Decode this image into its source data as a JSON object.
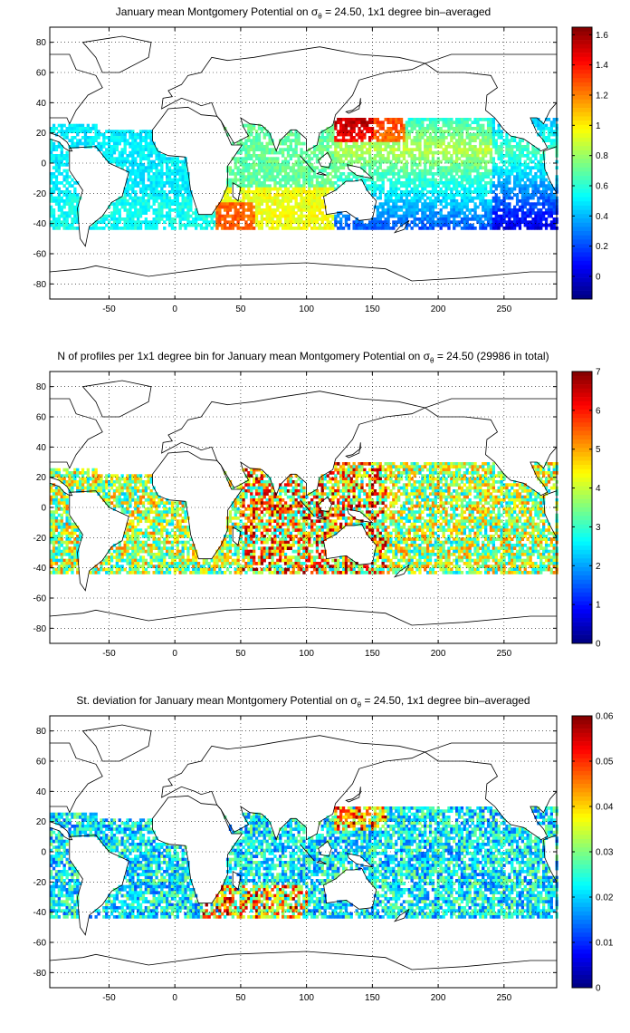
{
  "chart_data": [
    {
      "type": "heatmap",
      "title_pre": "January mean Montgomery Potential on ",
      "title_sigma": "σ",
      "title_sub": "θ",
      "title_post": " = 24.50, 1x1 degree bin–averaged",
      "xticks": [
        "-50",
        "0",
        "50",
        "100",
        "150",
        "200",
        "250"
      ],
      "xtick_values": [
        -50,
        0,
        50,
        100,
        150,
        200,
        250
      ],
      "yticks": [
        "80",
        "60",
        "40",
        "20",
        "0",
        "-20",
        "-40",
        "-60",
        "-80"
      ],
      "ytick_values": [
        80,
        60,
        40,
        20,
        0,
        -20,
        -40,
        -60,
        -80
      ],
      "xlim": [
        -95,
        290
      ],
      "ylim": [
        -90,
        90
      ],
      "grid": true,
      "colorbar": {
        "ticks": [
          "1.6",
          "1.4",
          "1.2",
          "1",
          "0.8",
          "0.6",
          "0.4",
          "0.2",
          "0"
        ],
        "tick_values": [
          1.6,
          1.4,
          1.2,
          1.0,
          0.8,
          0.6,
          0.4,
          0.2,
          0.0
        ],
        "range": [
          -0.15,
          1.65
        ]
      },
      "colormap": "jet"
    },
    {
      "type": "heatmap",
      "title_pre": "N of profiles per 1x1 degree bin for January mean Montgomery Potential on ",
      "title_sigma": "σ",
      "title_sub": "θ",
      "title_post": " = 24.50 (29986 in total)",
      "xticks": [
        "-50",
        "0",
        "50",
        "100",
        "150",
        "200",
        "250"
      ],
      "xtick_values": [
        -50,
        0,
        50,
        100,
        150,
        200,
        250
      ],
      "yticks": [
        "80",
        "60",
        "40",
        "20",
        "0",
        "-20",
        "-40",
        "-60",
        "-80"
      ],
      "ytick_values": [
        80,
        60,
        40,
        20,
        0,
        -20,
        -40,
        -60,
        -80
      ],
      "xlim": [
        -95,
        290
      ],
      "ylim": [
        -90,
        90
      ],
      "grid": true,
      "colorbar": {
        "ticks": [
          "7",
          "6",
          "5",
          "4",
          "3",
          "2",
          "1",
          "0"
        ],
        "tick_values": [
          7,
          6,
          5,
          4,
          3,
          2,
          1,
          0
        ],
        "range": [
          0,
          7
        ]
      },
      "colormap": "jet"
    },
    {
      "type": "heatmap",
      "title_pre": "St. deviation for January mean Montgomery Potential on ",
      "title_sigma": "σ",
      "title_sub": "θ",
      "title_post": " = 24.50, 1x1 degree bin–averaged",
      "xticks": [
        "-50",
        "0",
        "50",
        "100",
        "150",
        "200",
        "250"
      ],
      "xtick_values": [
        -50,
        0,
        50,
        100,
        150,
        200,
        250
      ],
      "yticks": [
        "80",
        "60",
        "40",
        "20",
        "0",
        "-20",
        "-40",
        "-60",
        "-80"
      ],
      "ytick_values": [
        80,
        60,
        40,
        20,
        0,
        -20,
        -40,
        -60,
        -80
      ],
      "xlim": [
        -95,
        290
      ],
      "ylim": [
        -90,
        90
      ],
      "grid": true,
      "colorbar": {
        "ticks": [
          "0.06",
          "0.05",
          "0.04",
          "0.03",
          "0.02",
          "0.01",
          "0"
        ],
        "tick_values": [
          0.06,
          0.05,
          0.04,
          0.03,
          0.02,
          0.01,
          0
        ],
        "range": [
          0,
          0.06
        ]
      },
      "colormap": "jet"
    }
  ]
}
